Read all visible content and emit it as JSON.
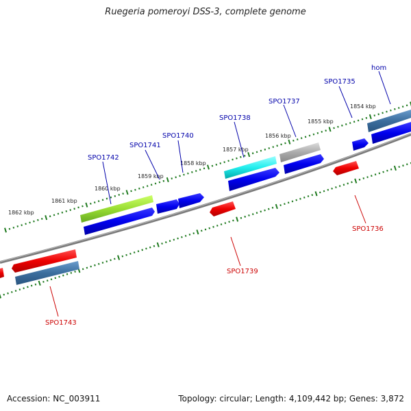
{
  "title": "Ruegeria pomeroyi DSS-3, complete genome",
  "footer": {
    "accession": "Accession: NC_003911",
    "summary": "Topology: circular; Length: 4,109,442 bp; Genes: 3,872"
  },
  "colors": {
    "backbone": "#808080",
    "ticks": "#1f7a1f",
    "label_top": "#0000aa",
    "label_bottom": "#cc0000",
    "scale_text": "#222222"
  },
  "scale_labels": [
    "1862 kbp",
    "1861 kbp",
    "1860 kbp",
    "1859 kbp",
    "1858 kbp",
    "1857 kbp",
    "1856 kbp",
    "1855 kbp",
    "1854 kbp"
  ],
  "gene_labels_top": [
    "SPO1742",
    "SPO1741",
    "SPO1740",
    "SPO1738",
    "SPO1737",
    "SPO1735",
    "hom"
  ],
  "gene_labels_bottom": [
    "SPO1743",
    "SPO1739",
    "SPO1736"
  ]
}
